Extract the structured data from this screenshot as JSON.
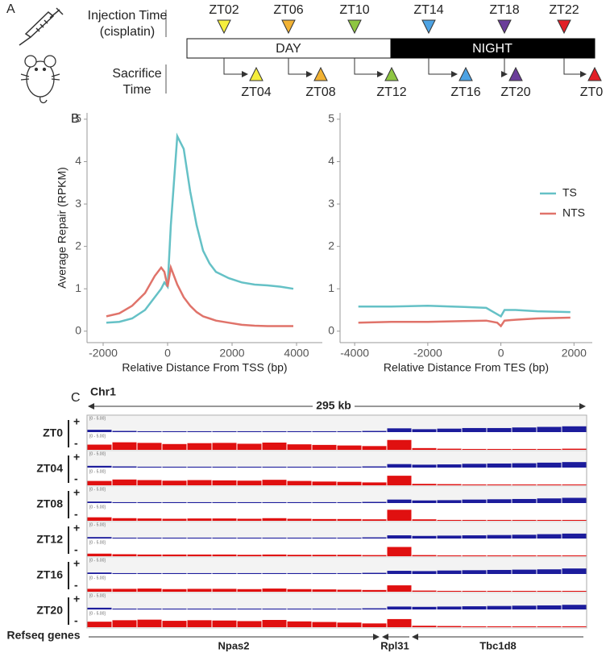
{
  "panel_a": {
    "label": "A",
    "injection_title": [
      "Injection Time",
      "(cisplatin)"
    ],
    "sacrifice_title": [
      "Sacrifice",
      "Time"
    ],
    "day": "DAY",
    "night": "NIGHT",
    "injection": [
      {
        "label": "ZT02",
        "color": "#f5ee3c"
      },
      {
        "label": "ZT06",
        "color": "#f2b233"
      },
      {
        "label": "ZT10",
        "color": "#8ec641"
      },
      {
        "label": "ZT14",
        "color": "#4da3e4"
      },
      {
        "label": "ZT18",
        "color": "#6b3e9a"
      },
      {
        "label": "ZT22",
        "color": "#e21f26"
      }
    ],
    "sacrifice": [
      {
        "label": "ZT04",
        "color": "#f5ee3c"
      },
      {
        "label": "ZT08",
        "color": "#f2b233"
      },
      {
        "label": "ZT12",
        "color": "#8ec641"
      },
      {
        "label": "ZT16",
        "color": "#4da3e4"
      },
      {
        "label": "ZT20",
        "color": "#6b3e9a"
      },
      {
        "label": "ZT0",
        "color": "#e21f26"
      }
    ]
  },
  "panel_b_label": "B",
  "chart_data": [
    {
      "type": "line",
      "xlabel": "Relative Distance From TSS (bp)",
      "ylabel": "Average Repair (RPKM)",
      "x": [
        -1900,
        -1500,
        -1100,
        -700,
        -400,
        -200,
        -100,
        0,
        100,
        300,
        500,
        700,
        900,
        1100,
        1300,
        1500,
        1900,
        2300,
        2700,
        3100,
        3500,
        3900
      ],
      "series": [
        {
          "color": "#65c1c6",
          "values": [
            0.2,
            0.22,
            0.3,
            0.5,
            0.8,
            1.0,
            1.15,
            1.05,
            2.5,
            4.6,
            4.3,
            3.3,
            2.5,
            1.9,
            1.6,
            1.4,
            1.25,
            1.15,
            1.1,
            1.08,
            1.05,
            1.0
          ]
        },
        {
          "color": "#e0736a",
          "values": [
            0.35,
            0.42,
            0.6,
            0.9,
            1.3,
            1.5,
            1.4,
            1.05,
            1.5,
            1.1,
            0.8,
            0.6,
            0.45,
            0.35,
            0.3,
            0.25,
            0.2,
            0.15,
            0.13,
            0.12,
            0.12,
            0.12
          ]
        }
      ],
      "xlim": [
        -2500,
        4800
      ],
      "ylim": [
        -0.27,
        5.15
      ],
      "xticks": [
        -2000,
        0,
        2000,
        4000
      ],
      "yticks": [
        0,
        1,
        2,
        3,
        4,
        5
      ]
    },
    {
      "type": "line",
      "xlabel": "Relative Distance From TES (bp)",
      "x": [
        -3900,
        -3000,
        -2000,
        -1000,
        -400,
        -100,
        0,
        100,
        400,
        1000,
        1900
      ],
      "series": [
        {
          "name": "TS",
          "color": "#65c1c6",
          "values": [
            0.58,
            0.58,
            0.6,
            0.57,
            0.55,
            0.4,
            0.35,
            0.5,
            0.5,
            0.47,
            0.45
          ]
        },
        {
          "name": "NTS",
          "color": "#e0736a",
          "values": [
            0.2,
            0.22,
            0.22,
            0.24,
            0.25,
            0.2,
            0.12,
            0.25,
            0.27,
            0.3,
            0.32
          ]
        }
      ],
      "xlim": [
        -4400,
        2500
      ],
      "ylim": [
        -0.27,
        5.15
      ],
      "xticks": [
        -4000,
        -2000,
        0,
        2000
      ],
      "yticks": [
        0,
        1,
        2,
        3,
        4,
        5
      ],
      "legend": "right"
    }
  ],
  "panel_c": {
    "label": "C",
    "chromosome": "Chr1",
    "span": "295 kb",
    "scale": "[0 - 5.00]",
    "plus": "+",
    "minus": "-",
    "plus_color": "#1c1c9c",
    "minus_color": "#e01010",
    "samples": [
      {
        "name": "ZT0",
        "plus": [
          0.8,
          0.4,
          0.3,
          0.3,
          0.3,
          0.3,
          0.3,
          0.3,
          0.3,
          0.3,
          0.3,
          0.4,
          1.3,
          1.0,
          1.2,
          1.4,
          1.4,
          1.6,
          1.8,
          2.0
        ],
        "minus": [
          1.8,
          2.6,
          2.4,
          2.0,
          2.3,
          2.4,
          2.1,
          2.5,
          1.9,
          1.7,
          1.5,
          1.3,
          3.4,
          0.6,
          0.4,
          0.3,
          0.3,
          0.3,
          0.3,
          0.4
        ]
      },
      {
        "name": "ZT04",
        "plus": [
          0.6,
          0.4,
          0.3,
          0.3,
          0.3,
          0.3,
          0.3,
          0.3,
          0.3,
          0.3,
          0.3,
          0.4,
          1.2,
          1.0,
          1.1,
          1.3,
          1.4,
          1.5,
          1.7,
          1.9
        ],
        "minus": [
          1.5,
          2.0,
          1.8,
          1.6,
          1.8,
          1.7,
          1.6,
          1.9,
          1.5,
          1.3,
          1.2,
          1.0,
          3.3,
          0.5,
          0.4,
          0.3,
          0.3,
          0.3,
          0.3,
          0.3
        ]
      },
      {
        "name": "ZT08",
        "plus": [
          0.5,
          0.3,
          0.3,
          0.3,
          0.3,
          0.3,
          0.3,
          0.3,
          0.3,
          0.3,
          0.3,
          0.4,
          1.2,
          0.9,
          1.0,
          1.2,
          1.3,
          1.4,
          1.6,
          1.8
        ],
        "minus": [
          1.2,
          0.9,
          0.8,
          0.7,
          0.8,
          0.8,
          0.7,
          0.9,
          0.7,
          0.6,
          0.6,
          0.5,
          3.8,
          0.5,
          0.3,
          0.3,
          0.3,
          0.3,
          0.3,
          0.3
        ]
      },
      {
        "name": "ZT12",
        "plus": [
          0.5,
          0.3,
          0.3,
          0.3,
          0.3,
          0.3,
          0.3,
          0.3,
          0.3,
          0.3,
          0.3,
          0.4,
          1.1,
          0.9,
          1.0,
          1.1,
          1.2,
          1.3,
          1.5,
          1.7
        ],
        "minus": [
          0.9,
          0.7,
          0.6,
          0.6,
          0.6,
          0.6,
          0.5,
          0.6,
          0.5,
          0.5,
          0.5,
          0.4,
          3.2,
          0.4,
          0.3,
          0.3,
          0.3,
          0.3,
          0.3,
          0.3
        ]
      },
      {
        "name": "ZT16",
        "plus": [
          0.5,
          0.3,
          0.3,
          0.3,
          0.3,
          0.3,
          0.3,
          0.3,
          0.3,
          0.3,
          0.3,
          0.4,
          1.1,
          1.0,
          1.2,
          1.3,
          1.4,
          1.5,
          1.6,
          1.9
        ],
        "minus": [
          1.0,
          1.0,
          1.1,
          0.9,
          1.0,
          1.0,
          0.9,
          1.1,
          0.9,
          0.8,
          0.7,
          0.6,
          2.2,
          0.4,
          0.3,
          0.3,
          0.3,
          0.3,
          0.3,
          0.3
        ]
      },
      {
        "name": "ZT20",
        "plus": [
          0.6,
          0.3,
          0.3,
          0.3,
          0.3,
          0.3,
          0.3,
          0.3,
          0.3,
          0.3,
          0.3,
          0.4,
          1.0,
          0.9,
          1.0,
          1.1,
          1.2,
          1.3,
          1.4,
          1.6
        ],
        "minus": [
          1.9,
          2.4,
          2.6,
          2.2,
          2.4,
          2.3,
          2.1,
          2.5,
          2.0,
          1.8,
          1.6,
          1.3,
          2.8,
          0.5,
          0.4,
          0.3,
          0.3,
          0.3,
          0.3,
          0.3
        ]
      }
    ],
    "refseq_label": "Refseq genes",
    "genes": [
      "Npas2",
      "Rpl31",
      "Tbc1d8"
    ]
  }
}
